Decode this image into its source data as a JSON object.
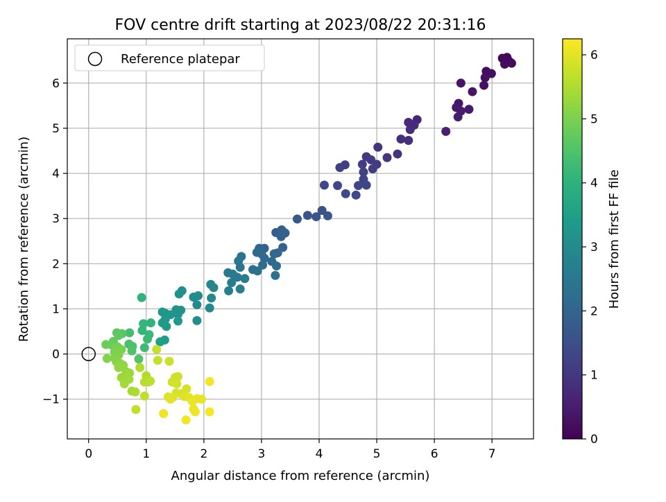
{
  "chart_data": {
    "type": "scatter",
    "title": "FOV centre drift starting at 2023/08/22 20:31:16",
    "xlabel": "Angular distance from reference (arcmin)",
    "ylabel": "Rotation from reference (arcmin)",
    "xlim": [
      -0.37,
      7.72
    ],
    "ylim": [
      -1.88,
      6.98
    ],
    "xticks": [
      0,
      1,
      2,
      3,
      4,
      5,
      6,
      7
    ],
    "yticks": [
      -1,
      0,
      1,
      2,
      3,
      4,
      5,
      6
    ],
    "xtick_labels": [
      "0",
      "1",
      "2",
      "3",
      "4",
      "5",
      "6",
      "7"
    ],
    "ytick_labels": [
      "−1",
      "0",
      "1",
      "2",
      "3",
      "4",
      "5",
      "6"
    ],
    "grid": true,
    "legend": {
      "position": "top-left",
      "entries": [
        "Reference platepar"
      ]
    },
    "reference_point": {
      "x": 0,
      "y": 0
    },
    "colorbar": {
      "label": "Hours from first FF file",
      "min": 0,
      "max": 6.25,
      "ticks": [
        0,
        1,
        2,
        3,
        4,
        5,
        6
      ],
      "tick_labels": [
        "0",
        "1",
        "2",
        "3",
        "4",
        "5",
        "6"
      ],
      "colormap": "viridis"
    },
    "points": [
      {
        "x": 7.26,
        "y": 6.57,
        "h": 0.05
      },
      {
        "x": 7.18,
        "y": 6.55,
        "h": 0.1
      },
      {
        "x": 7.3,
        "y": 6.48,
        "h": 0.13
      },
      {
        "x": 7.34,
        "y": 6.44,
        "h": 0.17
      },
      {
        "x": 7.22,
        "y": 6.42,
        "h": 0.2
      },
      {
        "x": 6.9,
        "y": 6.26,
        "h": 0.22
      },
      {
        "x": 6.99,
        "y": 6.21,
        "h": 0.25
      },
      {
        "x": 6.88,
        "y": 6.12,
        "h": 0.27
      },
      {
        "x": 6.86,
        "y": 5.95,
        "h": 0.3
      },
      {
        "x": 6.46,
        "y": 6.0,
        "h": 0.33
      },
      {
        "x": 6.66,
        "y": 5.81,
        "h": 0.36
      },
      {
        "x": 6.42,
        "y": 5.55,
        "h": 0.4
      },
      {
        "x": 6.38,
        "y": 5.46,
        "h": 0.42
      },
      {
        "x": 6.6,
        "y": 5.42,
        "h": 0.44
      },
      {
        "x": 6.46,
        "y": 5.38,
        "h": 0.46
      },
      {
        "x": 6.41,
        "y": 5.25,
        "h": 0.5
      },
      {
        "x": 6.2,
        "y": 4.93,
        "h": 0.55
      },
      {
        "x": 5.7,
        "y": 5.19,
        "h": 0.65
      },
      {
        "x": 5.55,
        "y": 5.13,
        "h": 0.7
      },
      {
        "x": 5.65,
        "y": 5.07,
        "h": 0.74
      },
      {
        "x": 5.58,
        "y": 4.97,
        "h": 0.78
      },
      {
        "x": 5.42,
        "y": 4.76,
        "h": 0.82
      },
      {
        "x": 5.55,
        "y": 4.73,
        "h": 0.86
      },
      {
        "x": 5.36,
        "y": 4.43,
        "h": 0.9
      },
      {
        "x": 5.02,
        "y": 4.58,
        "h": 0.95
      },
      {
        "x": 5.18,
        "y": 4.35,
        "h": 0.98
      },
      {
        "x": 4.82,
        "y": 4.37,
        "h": 1.02
      },
      {
        "x": 4.9,
        "y": 4.3,
        "h": 1.06
      },
      {
        "x": 4.75,
        "y": 4.2,
        "h": 1.1
      },
      {
        "x": 5.0,
        "y": 4.2,
        "h": 1.12
      },
      {
        "x": 4.93,
        "y": 4.1,
        "h": 1.15
      },
      {
        "x": 4.45,
        "y": 4.19,
        "h": 1.18
      },
      {
        "x": 4.36,
        "y": 4.13,
        "h": 1.2
      },
      {
        "x": 4.77,
        "y": 4.03,
        "h": 1.23
      },
      {
        "x": 4.77,
        "y": 3.87,
        "h": 1.26
      },
      {
        "x": 4.68,
        "y": 3.73,
        "h": 1.28
      },
      {
        "x": 4.82,
        "y": 3.74,
        "h": 1.3
      },
      {
        "x": 4.09,
        "y": 3.74,
        "h": 1.33
      },
      {
        "x": 4.32,
        "y": 3.73,
        "h": 1.35
      },
      {
        "x": 4.46,
        "y": 3.55,
        "h": 1.38
      },
      {
        "x": 4.64,
        "y": 3.52,
        "h": 1.4
      },
      {
        "x": 4.05,
        "y": 3.18,
        "h": 1.55
      },
      {
        "x": 3.8,
        "y": 3.07,
        "h": 1.6
      },
      {
        "x": 3.95,
        "y": 3.04,
        "h": 1.63
      },
      {
        "x": 4.15,
        "y": 3.06,
        "h": 1.66
      },
      {
        "x": 3.62,
        "y": 2.99,
        "h": 1.7
      },
      {
        "x": 3.25,
        "y": 2.69,
        "h": 1.85
      },
      {
        "x": 3.35,
        "y": 2.75,
        "h": 1.88
      },
      {
        "x": 3.41,
        "y": 2.68,
        "h": 1.9
      },
      {
        "x": 3.34,
        "y": 2.6,
        "h": 1.93
      },
      {
        "x": 3.37,
        "y": 2.36,
        "h": 1.97
      },
      {
        "x": 3.05,
        "y": 2.34,
        "h": 2.0
      },
      {
        "x": 2.96,
        "y": 2.34,
        "h": 2.03
      },
      {
        "x": 3.22,
        "y": 2.22,
        "h": 2.05
      },
      {
        "x": 3.28,
        "y": 2.24,
        "h": 2.08
      },
      {
        "x": 2.92,
        "y": 2.25,
        "h": 2.1
      },
      {
        "x": 3.0,
        "y": 2.22,
        "h": 2.12
      },
      {
        "x": 3.05,
        "y": 2.12,
        "h": 2.15
      },
      {
        "x": 3.18,
        "y": 2.05,
        "h": 2.17
      },
      {
        "x": 3.02,
        "y": 1.97,
        "h": 2.2
      },
      {
        "x": 3.26,
        "y": 1.95,
        "h": 2.22
      },
      {
        "x": 2.85,
        "y": 1.87,
        "h": 2.25
      },
      {
        "x": 2.93,
        "y": 1.84,
        "h": 2.27
      },
      {
        "x": 3.24,
        "y": 1.74,
        "h": 2.3
      },
      {
        "x": 2.65,
        "y": 2.16,
        "h": 2.4
      },
      {
        "x": 2.6,
        "y": 2.06,
        "h": 2.43
      },
      {
        "x": 2.63,
        "y": 1.92,
        "h": 2.46
      },
      {
        "x": 2.42,
        "y": 1.8,
        "h": 2.5
      },
      {
        "x": 2.5,
        "y": 1.77,
        "h": 2.53
      },
      {
        "x": 2.58,
        "y": 1.7,
        "h": 2.56
      },
      {
        "x": 2.71,
        "y": 1.67,
        "h": 2.6
      },
      {
        "x": 2.48,
        "y": 1.58,
        "h": 2.63
      },
      {
        "x": 2.63,
        "y": 1.44,
        "h": 2.66
      },
      {
        "x": 2.43,
        "y": 1.4,
        "h": 2.7
      },
      {
        "x": 2.12,
        "y": 1.54,
        "h": 2.85
      },
      {
        "x": 2.17,
        "y": 1.47,
        "h": 2.88
      },
      {
        "x": 2.13,
        "y": 1.24,
        "h": 2.92
      },
      {
        "x": 2.1,
        "y": 1.02,
        "h": 2.95
      },
      {
        "x": 1.9,
        "y": 1.29,
        "h": 2.98
      },
      {
        "x": 1.82,
        "y": 1.26,
        "h": 3.0
      },
      {
        "x": 1.88,
        "y": 1.09,
        "h": 3.03
      },
      {
        "x": 1.88,
        "y": 0.74,
        "h": 3.06
      },
      {
        "x": 1.62,
        "y": 1.4,
        "h": 3.1
      },
      {
        "x": 1.57,
        "y": 1.33,
        "h": 3.13
      },
      {
        "x": 1.6,
        "y": 0.97,
        "h": 3.15
      },
      {
        "x": 1.52,
        "y": 0.98,
        "h": 3.18
      },
      {
        "x": 1.55,
        "y": 0.88,
        "h": 3.2
      },
      {
        "x": 1.42,
        "y": 0.87,
        "h": 3.23
      },
      {
        "x": 1.33,
        "y": 0.9,
        "h": 3.26
      },
      {
        "x": 1.28,
        "y": 0.93,
        "h": 3.3
      },
      {
        "x": 1.55,
        "y": 0.73,
        "h": 3.33
      },
      {
        "x": 1.33,
        "y": 0.77,
        "h": 3.36
      },
      {
        "x": 1.28,
        "y": 0.69,
        "h": 3.4
      },
      {
        "x": 1.35,
        "y": 0.61,
        "h": 3.43
      },
      {
        "x": 1.32,
        "y": 0.31,
        "h": 3.46
      },
      {
        "x": 1.24,
        "y": 0.27,
        "h": 3.5
      },
      {
        "x": 0.92,
        "y": 1.25,
        "h": 4.0
      },
      {
        "x": 1.08,
        "y": 0.69,
        "h": 4.05
      },
      {
        "x": 0.95,
        "y": 0.67,
        "h": 4.1
      },
      {
        "x": 0.93,
        "y": 0.52,
        "h": 4.15
      },
      {
        "x": 1.05,
        "y": 0.43,
        "h": 4.2
      },
      {
        "x": 1.02,
        "y": 0.33,
        "h": 4.25
      },
      {
        "x": 0.97,
        "y": 0.14,
        "h": 4.3
      },
      {
        "x": 0.71,
        "y": 0.47,
        "h": 4.35
      },
      {
        "x": 0.7,
        "y": 0.22,
        "h": 4.4
      },
      {
        "x": 0.76,
        "y": 0.17,
        "h": 4.45
      },
      {
        "x": 0.75,
        "y": 0.07,
        "h": 4.5
      },
      {
        "x": 0.87,
        "y": -0.11,
        "h": 4.55
      },
      {
        "x": 0.58,
        "y": 0.45,
        "h": 4.6
      },
      {
        "x": 0.49,
        "y": 0.47,
        "h": 4.65
      },
      {
        "x": 0.52,
        "y": 0.41,
        "h": 4.7
      },
      {
        "x": 0.43,
        "y": 0.28,
        "h": 4.75
      },
      {
        "x": 0.4,
        "y": 0.2,
        "h": 4.8
      },
      {
        "x": 0.3,
        "y": 0.21,
        "h": 4.85
      },
      {
        "x": 0.5,
        "y": 0.16,
        "h": 4.9
      },
      {
        "x": 0.46,
        "y": 0.13,
        "h": 4.95
      },
      {
        "x": 0.57,
        "y": 0.1,
        "h": 5.0
      },
      {
        "x": 0.45,
        "y": 0.04,
        "h": 5.02
      },
      {
        "x": 0.52,
        "y": -0.02,
        "h": 5.05
      },
      {
        "x": 0.45,
        "y": -0.09,
        "h": 5.08
      },
      {
        "x": 0.32,
        "y": -0.1,
        "h": 5.1
      },
      {
        "x": 0.48,
        "y": -0.17,
        "h": 5.13
      },
      {
        "x": 0.55,
        "y": -0.21,
        "h": 5.16
      },
      {
        "x": 0.6,
        "y": -0.25,
        "h": 5.2
      },
      {
        "x": 0.52,
        "y": -0.3,
        "h": 5.23
      },
      {
        "x": 0.65,
        "y": -0.39,
        "h": 5.26
      },
      {
        "x": 0.71,
        "y": -0.42,
        "h": 5.3
      },
      {
        "x": 0.57,
        "y": -0.52,
        "h": 5.33
      },
      {
        "x": 0.7,
        "y": -0.56,
        "h": 5.36
      },
      {
        "x": 0.62,
        "y": -0.66,
        "h": 5.4
      },
      {
        "x": 0.75,
        "y": -0.82,
        "h": 5.43
      },
      {
        "x": 0.81,
        "y": -0.84,
        "h": 5.46
      },
      {
        "x": 0.89,
        "y": -0.3,
        "h": 5.5
      },
      {
        "x": 1.0,
        "y": -0.48,
        "h": 5.53
      },
      {
        "x": 0.97,
        "y": -0.62,
        "h": 5.56
      },
      {
        "x": 1.07,
        "y": -0.6,
        "h": 5.6
      },
      {
        "x": 1.04,
        "y": -0.62,
        "h": 5.62
      },
      {
        "x": 0.97,
        "y": -0.93,
        "h": 5.65
      },
      {
        "x": 0.82,
        "y": -1.23,
        "h": 5.68
      },
      {
        "x": 1.2,
        "y": -0.14,
        "h": 5.7
      },
      {
        "x": 1.18,
        "y": 0.1,
        "h": 5.72
      },
      {
        "x": 1.4,
        "y": -0.16,
        "h": 5.75
      },
      {
        "x": 1.5,
        "y": -0.52,
        "h": 5.78
      },
      {
        "x": 1.55,
        "y": -0.5,
        "h": 5.8
      },
      {
        "x": 1.45,
        "y": -0.62,
        "h": 5.82
      },
      {
        "x": 1.53,
        "y": -0.66,
        "h": 5.84
      },
      {
        "x": 1.52,
        "y": -0.86,
        "h": 5.86
      },
      {
        "x": 1.7,
        "y": -0.77,
        "h": 5.88
      },
      {
        "x": 1.6,
        "y": -0.88,
        "h": 5.9
      },
      {
        "x": 1.38,
        "y": -0.95,
        "h": 5.92
      },
      {
        "x": 1.46,
        "y": -0.96,
        "h": 5.94
      },
      {
        "x": 1.66,
        "y": -0.94,
        "h": 5.96
      },
      {
        "x": 1.42,
        "y": -1.0,
        "h": 5.98
      },
      {
        "x": 1.74,
        "y": -0.96,
        "h": 6.0
      },
      {
        "x": 1.88,
        "y": -0.99,
        "h": 6.02
      },
      {
        "x": 1.96,
        "y": -1.0,
        "h": 6.04
      },
      {
        "x": 1.8,
        "y": -1.05,
        "h": 6.06
      },
      {
        "x": 1.82,
        "y": -1.22,
        "h": 6.08
      },
      {
        "x": 1.85,
        "y": -1.28,
        "h": 6.1
      },
      {
        "x": 1.3,
        "y": -1.32,
        "h": 6.12
      },
      {
        "x": 1.69,
        "y": -1.46,
        "h": 6.14
      },
      {
        "x": 2.1,
        "y": -0.61,
        "h": 6.16
      },
      {
        "x": 2.1,
        "y": -1.28,
        "h": 6.18
      }
    ]
  }
}
